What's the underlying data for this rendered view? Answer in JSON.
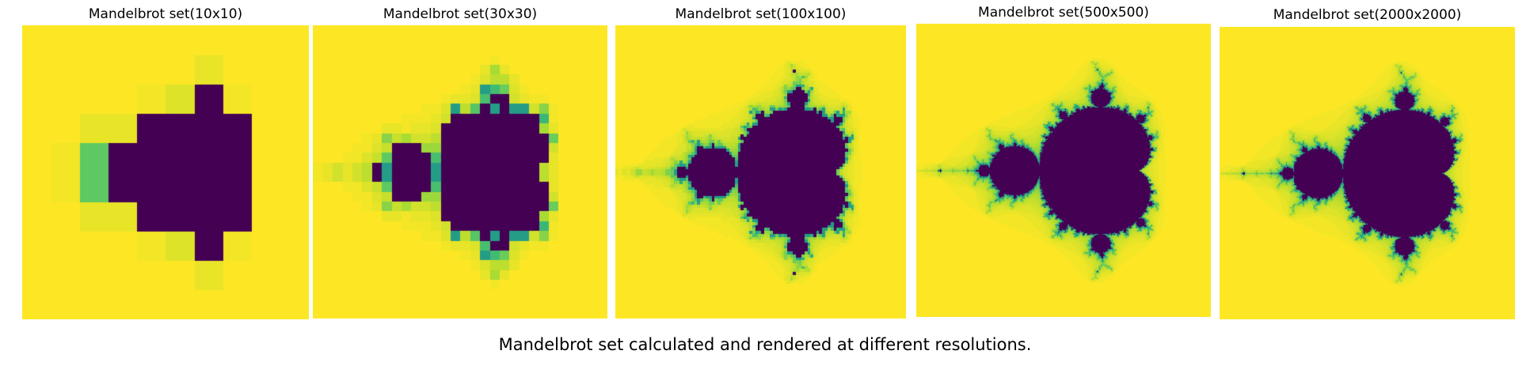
{
  "chart_data": [
    {
      "type": "heatmap",
      "title": "Mandelbrot set(10x10)",
      "resolution": 10,
      "xlim": [
        -2.0,
        1.0
      ],
      "ylim": [
        -1.5,
        1.5
      ],
      "max_iter": 100,
      "colormap": "viridis",
      "axis": "off"
    },
    {
      "type": "heatmap",
      "title": "Mandelbrot set(30x30)",
      "resolution": 30,
      "xlim": [
        -2.0,
        1.0
      ],
      "ylim": [
        -1.5,
        1.5
      ],
      "max_iter": 100,
      "colormap": "viridis",
      "axis": "off"
    },
    {
      "type": "heatmap",
      "title": "Mandelbrot set(100x100)",
      "resolution": 100,
      "xlim": [
        -2.0,
        1.0
      ],
      "ylim": [
        -1.5,
        1.5
      ],
      "max_iter": 100,
      "colormap": "viridis",
      "axis": "off"
    },
    {
      "type": "heatmap",
      "title": "Mandelbrot set(500x500)",
      "resolution": 500,
      "xlim": [
        -2.0,
        1.0
      ],
      "ylim": [
        -1.5,
        1.5
      ],
      "max_iter": 100,
      "colormap": "viridis",
      "axis": "off"
    },
    {
      "type": "heatmap",
      "title": "Mandelbrot set(2000x2000)",
      "resolution": 2000,
      "xlim": [
        -2.0,
        1.0
      ],
      "ylim": [
        -1.5,
        1.5
      ],
      "max_iter": 100,
      "colormap": "viridis",
      "axis": "off"
    }
  ],
  "caption": "Mandelbrot set calculated and rendered at different resolutions.",
  "colors": {
    "inside_set": "#440154",
    "outside_set": "#fde725",
    "background": "#ffffff"
  }
}
